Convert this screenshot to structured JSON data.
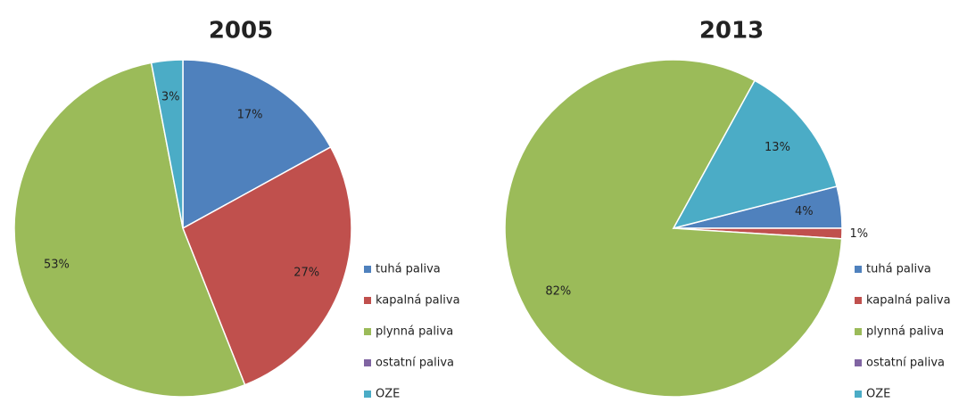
{
  "chart_data": [
    {
      "type": "pie",
      "title": "2005",
      "categories": [
        "tuhá paliva",
        "kapalná paliva",
        "plynná paliva",
        "ostatní paliva",
        "OZE"
      ],
      "values": [
        17,
        27,
        53,
        0,
        3
      ],
      "value_labels": [
        "17%",
        "27%",
        "53%",
        null,
        "3%"
      ],
      "colors": [
        "#4f81bd",
        "#c0504d",
        "#9bbb59",
        "#8064a2",
        "#4bacc6"
      ]
    },
    {
      "type": "pie",
      "title": "2013",
      "categories": [
        "tuhá paliva",
        "kapalná paliva",
        "plynná paliva",
        "ostatní paliva",
        "OZE"
      ],
      "values": [
        4,
        1,
        82,
        0,
        13
      ],
      "value_labels": [
        "4%",
        "1%",
        "82%",
        null,
        "13%"
      ],
      "colors": [
        "#4f81bd",
        "#c0504d",
        "#9bbb59",
        "#8064a2",
        "#4bacc6"
      ]
    }
  ]
}
